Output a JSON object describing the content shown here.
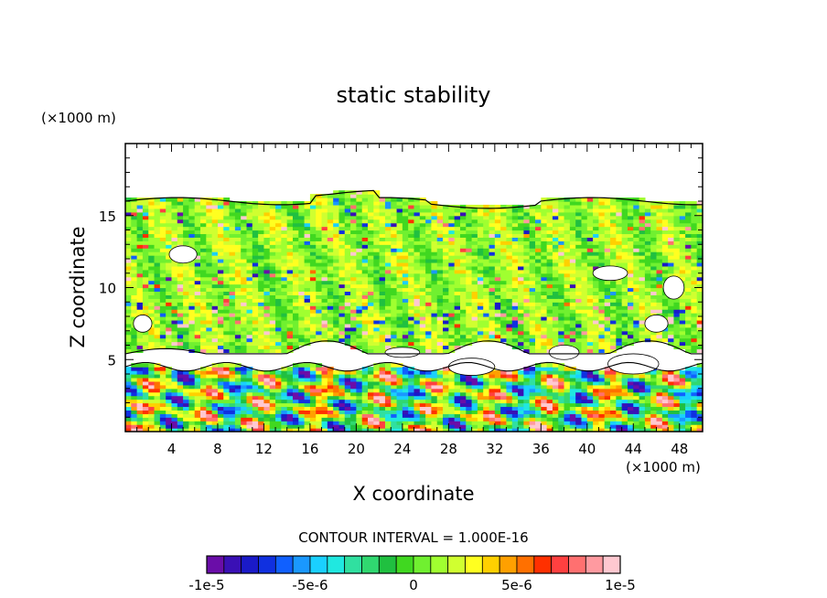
{
  "chart_data": {
    "type": "heatmap",
    "title": "static stability",
    "xlabel": "X coordinate",
    "ylabel": "Z coordinate",
    "x_unit_label": "(×1000 m)",
    "y_unit_label": "(×1000 m)",
    "xlim": [
      0,
      50
    ],
    "ylim": [
      0,
      20
    ],
    "x_ticks": [
      4,
      8,
      12,
      16,
      20,
      24,
      28,
      32,
      36,
      40,
      44,
      48
    ],
    "x_minor_step": 1,
    "y_ticks": [
      5,
      10,
      15
    ],
    "y_minor_step": 1,
    "value_range": [
      -1e-05,
      1e-05
    ],
    "contour_interval_text": "CONTOUR INTERVAL = 1.000E-16",
    "colorbar": {
      "colors": [
        "#6a0da8",
        "#3a10b5",
        "#1a1ac8",
        "#1030e0",
        "#1060ff",
        "#1a98ff",
        "#1ad0ff",
        "#20e8e0",
        "#30e0a0",
        "#30d870",
        "#20c040",
        "#40d820",
        "#70f030",
        "#a0ff30",
        "#d0ff30",
        "#ffff20",
        "#ffd000",
        "#ffa000",
        "#ff7000",
        "#ff3000",
        "#ff4040",
        "#ff7070",
        "#ff9aa0",
        "#ffc8d0"
      ],
      "tick_labels": [
        "-1e-5",
        "-5e-6",
        "0",
        "5e-6",
        "1e-5"
      ],
      "tick_values": [
        -1e-05,
        -5e-06,
        0,
        5e-06,
        1e-05
      ]
    },
    "regions": {
      "upper_boundary_km": 16,
      "midlevel_gap_km": 5,
      "lower_layer_top_km": 4.5
    }
  }
}
